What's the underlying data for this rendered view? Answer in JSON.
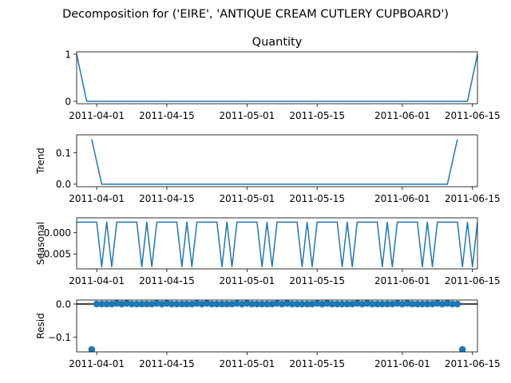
{
  "figure_title": "Decomposition for ('EIRE', 'ANTIQUE CREAM CUTLERY CUPBOARD')",
  "x_axis": {
    "ticks": [
      "2011-04-01",
      "2011-04-15",
      "2011-05-01",
      "2011-05-15",
      "2011-06-01",
      "2011-06-15"
    ],
    "range": [
      "2011-03-28",
      "2011-06-16"
    ]
  },
  "colors": {
    "line": "#1f77b4",
    "axis": "#000000",
    "background": "#ffffff"
  },
  "chart_data": [
    {
      "type": "line",
      "title": "Quantity",
      "ylabel": "",
      "ylim": [
        -0.05,
        1.05
      ],
      "yticks": [
        0,
        1
      ],
      "ytick_labels": [
        "0",
        "1"
      ],
      "x": [
        "2011-03-28",
        "2011-03-30",
        "2011-06-14",
        "2011-06-16"
      ],
      "values": [
        1,
        0,
        0,
        1
      ]
    },
    {
      "type": "line",
      "title": "",
      "ylabel": "Trend",
      "ylim": [
        -0.008,
        0.157
      ],
      "yticks": [
        0.0,
        0.1
      ],
      "ytick_labels": [
        "0.0",
        "0.1"
      ],
      "x": [
        "2011-03-31",
        "2011-04-02",
        "2011-06-10",
        "2011-06-12"
      ],
      "values": [
        0.143,
        0,
        0,
        0.143
      ]
    },
    {
      "type": "line",
      "title": "",
      "ylabel": "Seasonal",
      "ylim": [
        -0.0085,
        0.0035
      ],
      "yticks": [
        0.0,
        -0.005
      ],
      "ytick_labels": [
        "0.000",
        "−0.005"
      ],
      "period_pattern": [
        0.0025,
        0.0025,
        0.0025,
        0.0025,
        0.0025,
        -0.008,
        0.0025,
        -0.008
      ],
      "pattern_start": "2011-03-28",
      "pattern_end": "2011-06-16"
    },
    {
      "type": "scatter",
      "title": "",
      "ylabel": "Resid",
      "ylim": [
        -0.144,
        0.012
      ],
      "yticks": [
        0.0,
        -0.1
      ],
      "ytick_labels": [
        "0.0",
        "−0.1"
      ],
      "baseline": 0,
      "outliers": [
        {
          "x": "2011-03-31",
          "y": -0.137
        },
        {
          "x": "2011-06-13",
          "y": -0.137
        }
      ],
      "regular_range": [
        "2011-04-01",
        "2011-06-12"
      ],
      "regular_value": 0.0,
      "bump_value": 0.002
    }
  ]
}
